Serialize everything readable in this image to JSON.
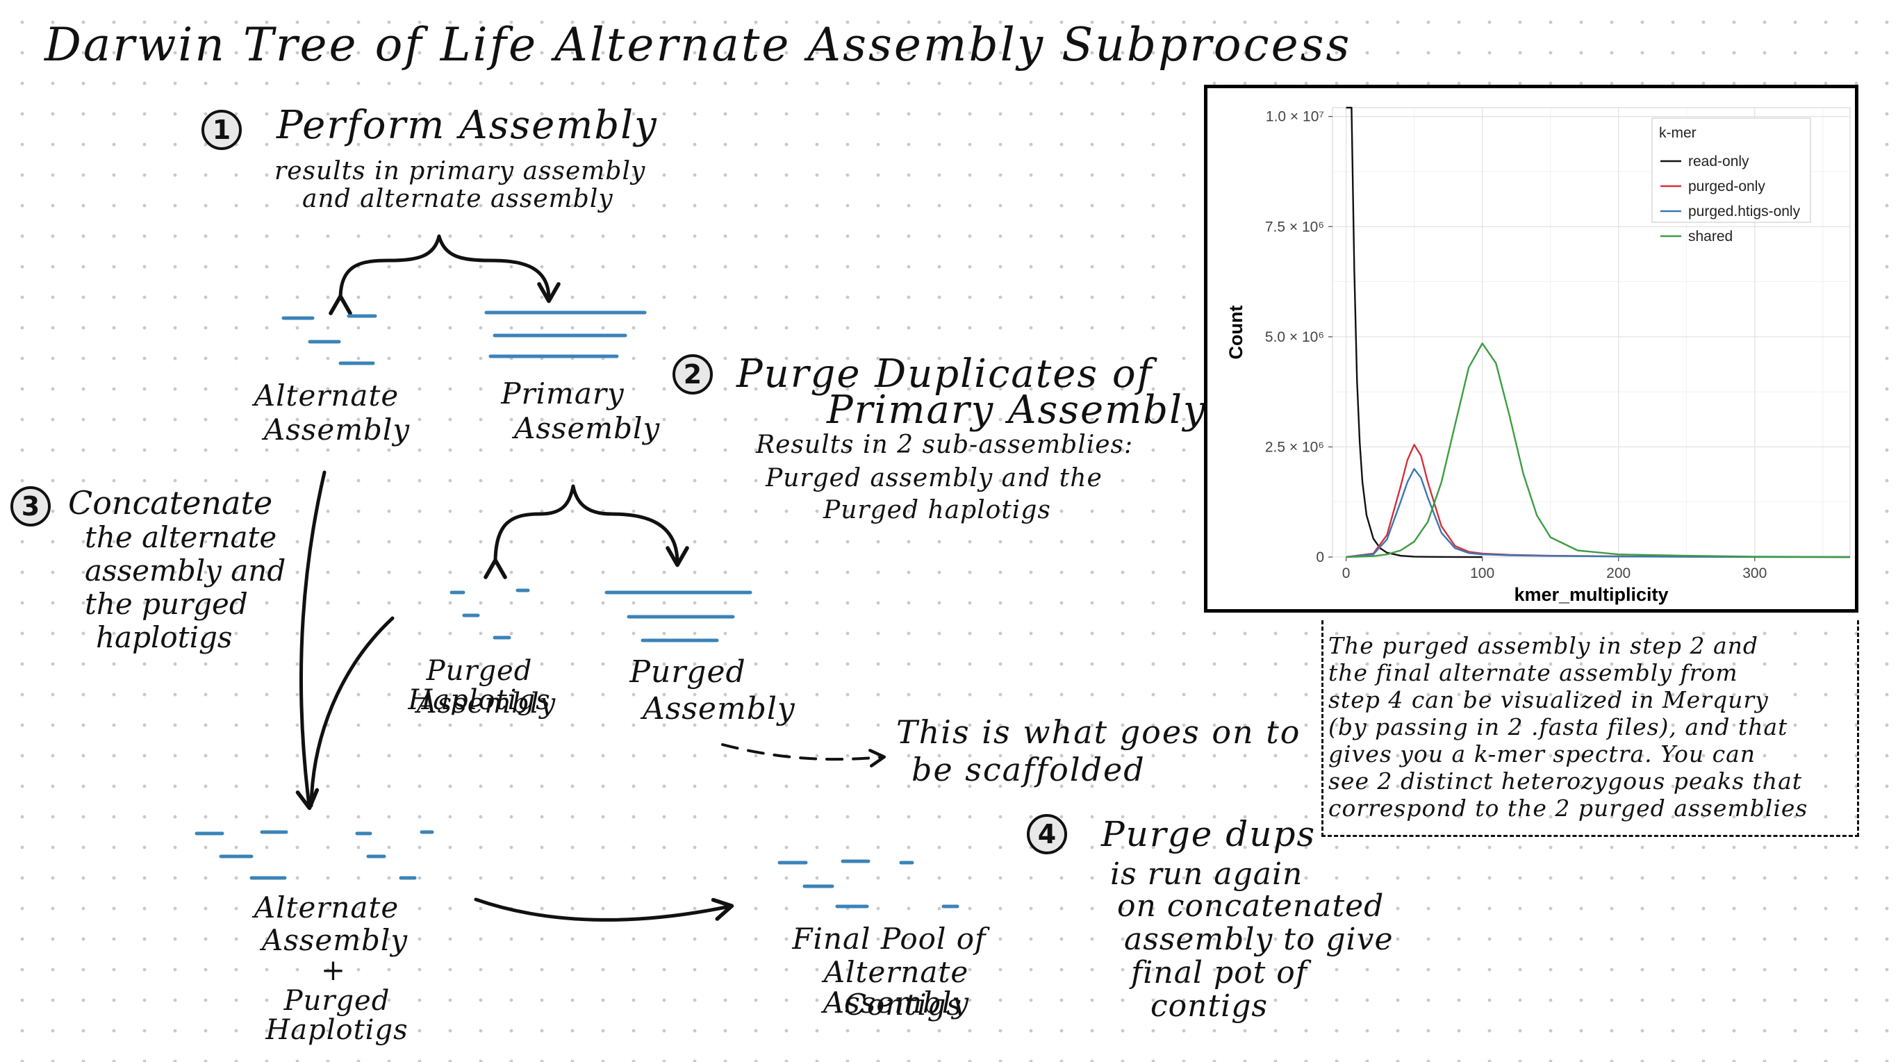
{
  "title": "Darwin Tree of Life Alternate Assembly Subprocess",
  "steps": {
    "s1": {
      "num": "1",
      "title": "Perform Assembly",
      "sub1": "results in primary assembly",
      "sub2": "and alternate assembly"
    },
    "s2": {
      "num": "2",
      "title1": "Purge Duplicates of",
      "title2": "Primary Assembly",
      "sub1": "Results in 2 sub-assemblies:",
      "sub2": "Purged assembly and the",
      "sub3": "Purged haplotigs"
    },
    "s3": {
      "num": "3",
      "l1": "Concatenate",
      "l2": "the alternate",
      "l3": "assembly and",
      "l4": "the purged",
      "l5": "haplotigs"
    },
    "s4": {
      "num": "4",
      "title": "Purge dups",
      "l1": "is run again",
      "l2": "on concatenated",
      "l3": "assembly to give",
      "l4": "final pot of",
      "l5": "contigs"
    }
  },
  "labels": {
    "alt1": "Alternate",
    "alt2": "Assembly",
    "prim1": "Primary",
    "prim2": "Assembly",
    "ph1": "Purged Haplotigs",
    "ph2": "Assembly",
    "pa1": "Purged",
    "pa2": "Assembly",
    "scaff1": "This is what goes on to",
    "scaff2": "be scaffolded",
    "comb1": "Alternate",
    "comb2": "Assembly",
    "comb3": "+",
    "comb4": "Purged Haplotigs",
    "final1": "Final Pool of",
    "final2": "Alternate Assembly",
    "final3": "Contigs"
  },
  "note": {
    "l1": "The purged assembly in step 2 and",
    "l2": "the final alternate assembly from",
    "l3": "step 4 can be visualized in Merqury",
    "l4": "(by passing in 2 .fasta files), and that",
    "l5": "gives you a k-mer spectra. You can",
    "l6": "see 2 distinct heterozygous peaks that",
    "l7": "correspond to the 2 purged assemblies"
  },
  "colors": {
    "contig": "#3b83b8",
    "ink": "#111111"
  },
  "chart_data": {
    "type": "line",
    "xlabel": "kmer_multiplicity",
    "ylabel": "Count",
    "xlim": [
      -10,
      370
    ],
    "ylim": [
      0,
      10200000
    ],
    "x_ticks": [
      0,
      100,
      200,
      300
    ],
    "y_ticks": [
      {
        "value": 0,
        "label": "0"
      },
      {
        "value": 2500000,
        "label": "2.5 × 10⁶"
      },
      {
        "value": 5000000,
        "label": "5.0 × 10⁶"
      },
      {
        "value": 7500000,
        "label": "7.5 × 10⁶"
      },
      {
        "value": 10000000,
        "label": "1.0 × 10⁷"
      }
    ],
    "grid": true,
    "legend_title": "k-mer",
    "legend_position": "top-right",
    "series": [
      {
        "name": "read-only",
        "color": "#111111",
        "x": [
          0,
          4,
          6,
          8,
          10,
          12,
          15,
          20,
          25,
          30,
          40,
          50,
          60,
          80,
          100
        ],
        "y": [
          10200000,
          10200000,
          6500000,
          4000000,
          2600000,
          1700000,
          950000,
          420000,
          200000,
          100000,
          30000,
          10000,
          4000,
          1000,
          0
        ]
      },
      {
        "name": "purged-only",
        "color": "#d2313a",
        "x": [
          0,
          20,
          30,
          40,
          45,
          50,
          55,
          60,
          70,
          80,
          90,
          100,
          120,
          150,
          200,
          250,
          300,
          370
        ],
        "y": [
          0,
          80000,
          500000,
          1600000,
          2200000,
          2550000,
          2300000,
          1700000,
          700000,
          250000,
          120000,
          80000,
          50000,
          30000,
          15000,
          8000,
          3000,
          0
        ]
      },
      {
        "name": "purged.htigs-only",
        "color": "#3a77b4",
        "x": [
          0,
          20,
          30,
          40,
          45,
          50,
          55,
          60,
          70,
          80,
          90,
          100,
          120,
          150,
          200,
          250,
          300,
          370
        ],
        "y": [
          0,
          60000,
          400000,
          1250000,
          1700000,
          2000000,
          1800000,
          1350000,
          550000,
          200000,
          90000,
          60000,
          40000,
          25000,
          12000,
          6000,
          2000,
          0
        ]
      },
      {
        "name": "shared",
        "color": "#3e9c43",
        "x": [
          0,
          20,
          30,
          40,
          50,
          60,
          70,
          80,
          90,
          100,
          110,
          120,
          130,
          140,
          150,
          170,
          200,
          250,
          300,
          370
        ],
        "y": [
          0,
          20000,
          60000,
          150000,
          350000,
          800000,
          1700000,
          3000000,
          4300000,
          4850000,
          4400000,
          3200000,
          1900000,
          950000,
          450000,
          150000,
          60000,
          30000,
          10000,
          0
        ]
      }
    ]
  }
}
